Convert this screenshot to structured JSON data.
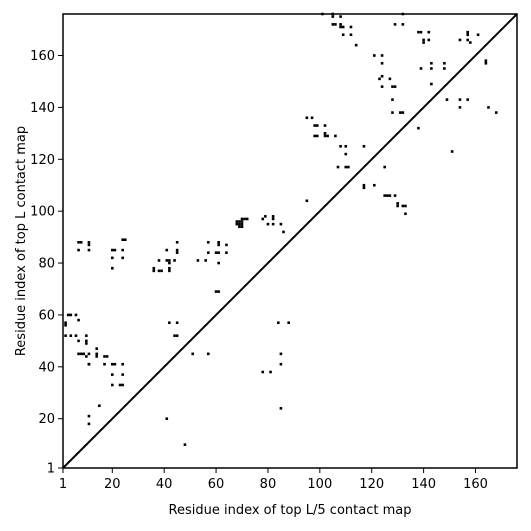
{
  "chart_data": {
    "type": "scatter",
    "title": "",
    "xlabel": "Residue index of top L/5 contact map",
    "ylabel": "Residue index of top L contact map",
    "xlim": [
      1,
      176
    ],
    "ylim": [
      1,
      176
    ],
    "x_ticks": [
      1,
      20,
      40,
      60,
      80,
      100,
      120,
      140,
      160
    ],
    "y_ticks": [
      1,
      20,
      40,
      60,
      80,
      100,
      120,
      140,
      160
    ],
    "diagonal": true,
    "grid": false,
    "marker_color": "#000000",
    "upper_points": [
      [
        24,
        89
      ],
      [
        25,
        89
      ],
      [
        20,
        85
      ],
      [
        21,
        85
      ],
      [
        24,
        85
      ],
      [
        20,
        82
      ],
      [
        24,
        82
      ],
      [
        20,
        78
      ],
      [
        7,
        88
      ],
      [
        8,
        88
      ],
      [
        11,
        88
      ],
      [
        11,
        87
      ],
      [
        7,
        85
      ],
      [
        11,
        85
      ],
      [
        36,
        78
      ],
      [
        36,
        77
      ],
      [
        38,
        77
      ],
      [
        39,
        77
      ],
      [
        38,
        81
      ],
      [
        41,
        81
      ],
      [
        42,
        81
      ],
      [
        42,
        80
      ],
      [
        42,
        78
      ],
      [
        42,
        77
      ],
      [
        44,
        81
      ],
      [
        45,
        85
      ],
      [
        45,
        84
      ],
      [
        45,
        88
      ],
      [
        41,
        85
      ],
      [
        53,
        81
      ],
      [
        56,
        81
      ],
      [
        57,
        84
      ],
      [
        60,
        84
      ],
      [
        61,
        88
      ],
      [
        61,
        87
      ],
      [
        61,
        84
      ],
      [
        61,
        80
      ],
      [
        64,
        87
      ],
      [
        64,
        84
      ],
      [
        57,
        88
      ],
      [
        68,
        95
      ],
      [
        68,
        96
      ],
      [
        69,
        95
      ],
      [
        69,
        96
      ],
      [
        70,
        95
      ],
      [
        70,
        96
      ],
      [
        70,
        97
      ],
      [
        71,
        97
      ],
      [
        72,
        97
      ],
      [
        69,
        94
      ],
      [
        70,
        94
      ],
      [
        78,
        97
      ],
      [
        79,
        98
      ],
      [
        80,
        95
      ],
      [
        82,
        95
      ],
      [
        82,
        97
      ],
      [
        82,
        98
      ],
      [
        85,
        95
      ],
      [
        86,
        92
      ],
      [
        95,
        136
      ],
      [
        97,
        136
      ],
      [
        98,
        133
      ],
      [
        99,
        133
      ],
      [
        98,
        129
      ],
      [
        99,
        129
      ],
      [
        102,
        133
      ],
      [
        102,
        130
      ],
      [
        102,
        129
      ],
      [
        103,
        129
      ],
      [
        101,
        176
      ],
      [
        105,
        175
      ],
      [
        105,
        176
      ],
      [
        105,
        172
      ],
      [
        106,
        172
      ],
      [
        106,
        129
      ],
      [
        108,
        175
      ],
      [
        108,
        172
      ],
      [
        108,
        171
      ],
      [
        109,
        168
      ],
      [
        109,
        171
      ],
      [
        108,
        125
      ],
      [
        110,
        125
      ],
      [
        112,
        168
      ],
      [
        112,
        171
      ],
      [
        114,
        164
      ],
      [
        110,
        122
      ],
      [
        111,
        117
      ],
      [
        110,
        117
      ],
      [
        107,
        117
      ],
      [
        95,
        104
      ],
      [
        117,
        125
      ],
      [
        117,
        110
      ],
      [
        117,
        109
      ],
      [
        121,
        110
      ],
      [
        121,
        160
      ],
      [
        123,
        151
      ],
      [
        124,
        152
      ],
      [
        124,
        157
      ],
      [
        124,
        160
      ],
      [
        124,
        148
      ],
      [
        125,
        117
      ],
      [
        125,
        106
      ],
      [
        126,
        106
      ],
      [
        127,
        106
      ],
      [
        127,
        151
      ],
      [
        128,
        148
      ],
      [
        129,
        148
      ],
      [
        128,
        143
      ],
      [
        128,
        138
      ],
      [
        129,
        172
      ],
      [
        129,
        106
      ],
      [
        130,
        102
      ],
      [
        130,
        103
      ],
      [
        131,
        138
      ],
      [
        132,
        138
      ],
      [
        132,
        172
      ],
      [
        132,
        176
      ],
      [
        132,
        102
      ],
      [
        133,
        102
      ],
      [
        133,
        99
      ],
      [
        138,
        169
      ],
      [
        139,
        169
      ],
      [
        138,
        132
      ],
      [
        139,
        155
      ],
      [
        140,
        166
      ],
      [
        140,
        165
      ],
      [
        142,
        169
      ],
      [
        142,
        166
      ],
      [
        143,
        157
      ],
      [
        143,
        155
      ],
      [
        143,
        149
      ],
      [
        148,
        155
      ],
      [
        148,
        157
      ],
      [
        149,
        143
      ],
      [
        151,
        123
      ],
      [
        154,
        166
      ],
      [
        154,
        143
      ],
      [
        154,
        140
      ],
      [
        157,
        143
      ],
      [
        157,
        169
      ],
      [
        157,
        168
      ],
      [
        157,
        166
      ],
      [
        158,
        165
      ],
      [
        161,
        168
      ],
      [
        164,
        158
      ],
      [
        164,
        157
      ],
      [
        165,
        140
      ],
      [
        168,
        138
      ]
    ],
    "lower_points": [
      [
        3,
        60
      ],
      [
        2,
        57
      ],
      [
        2,
        56
      ],
      [
        4,
        60
      ],
      [
        6,
        60
      ],
      [
        7,
        58
      ],
      [
        4,
        52
      ],
      [
        6,
        52
      ],
      [
        2,
        52
      ],
      [
        10,
        52
      ],
      [
        7,
        50
      ],
      [
        10,
        50
      ],
      [
        10,
        49
      ],
      [
        9,
        45
      ],
      [
        11,
        45
      ],
      [
        10,
        44
      ],
      [
        8,
        45
      ],
      [
        11,
        41
      ],
      [
        11,
        41
      ],
      [
        14,
        45
      ],
      [
        14,
        44
      ],
      [
        14,
        47
      ],
      [
        17,
        44
      ],
      [
        18,
        44
      ],
      [
        17,
        41
      ],
      [
        20,
        41
      ],
      [
        21,
        41
      ],
      [
        24,
        41
      ],
      [
        20,
        37
      ],
      [
        24,
        37
      ],
      [
        20,
        33
      ],
      [
        23,
        33
      ],
      [
        24,
        33
      ],
      [
        11,
        21
      ],
      [
        11,
        18
      ],
      [
        15,
        25
      ],
      [
        7,
        45
      ],
      [
        42,
        57
      ],
      [
        45,
        57
      ],
      [
        45,
        52
      ],
      [
        44,
        52
      ],
      [
        51,
        45
      ],
      [
        57,
        45
      ],
      [
        41,
        20
      ],
      [
        48,
        10
      ],
      [
        60,
        69
      ],
      [
        61,
        69
      ],
      [
        84,
        57
      ],
      [
        88,
        57
      ],
      [
        85,
        45
      ],
      [
        85,
        41
      ],
      [
        85,
        24
      ],
      [
        78,
        38
      ],
      [
        81,
        38
      ]
    ]
  }
}
